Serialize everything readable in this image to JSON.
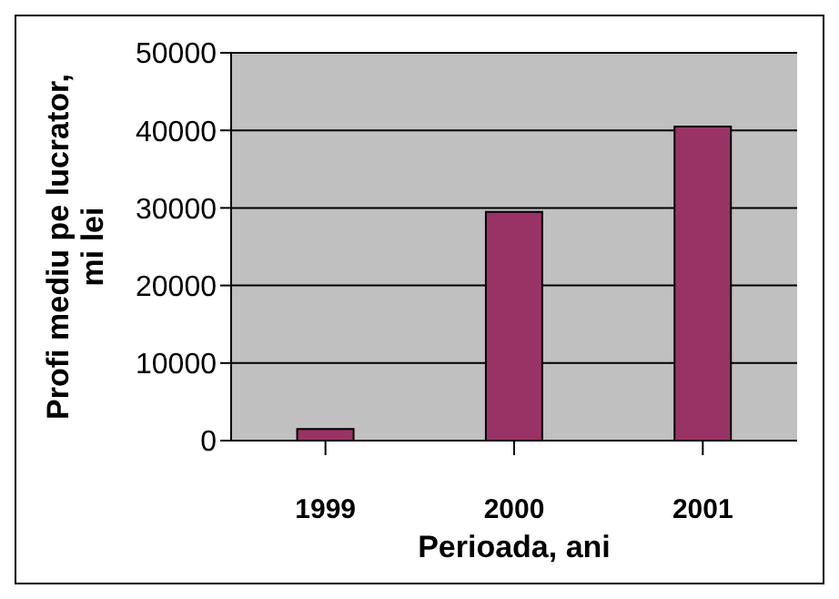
{
  "chart_data": {
    "type": "bar",
    "xlabel": "Perioada, ani",
    "ylabel": "Profi mediu pe lucrator, mi lei",
    "categories": [
      "1999",
      "2000",
      "2001"
    ],
    "values": [
      1500,
      29500,
      40500
    ],
    "color": "#993366",
    "ylim": [
      0,
      50000
    ],
    "yticks": [
      0,
      10000,
      20000,
      30000,
      40000,
      50000
    ],
    "grid": "y"
  }
}
